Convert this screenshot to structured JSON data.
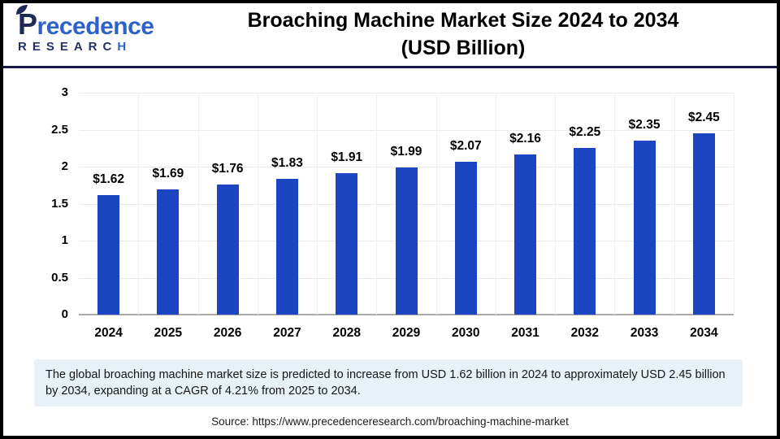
{
  "logo": {
    "brand": "Precedence",
    "subtitle": "RESEARCH"
  },
  "header": {
    "title_line1": "Broaching Machine Market Size 2024 to 2034",
    "title_line2": "(USD Billion)"
  },
  "chart_data": {
    "type": "bar",
    "title": "Broaching Machine Market Size 2024 to 2034 (USD Billion)",
    "categories": [
      "2024",
      "2025",
      "2026",
      "2027",
      "2028",
      "2029",
      "2030",
      "2031",
      "2032",
      "2033",
      "2034"
    ],
    "values": [
      1.62,
      1.69,
      1.76,
      1.83,
      1.91,
      1.99,
      2.07,
      2.16,
      2.25,
      2.35,
      2.45
    ],
    "data_labels": [
      "$1.62",
      "$1.69",
      "$1.76",
      "$1.83",
      "$1.91",
      "$1.99",
      "$2.07",
      "$2.16",
      "$2.25",
      "$2.35",
      "$2.45"
    ],
    "xlabel": "",
    "ylabel": "",
    "ylim": [
      0,
      3
    ],
    "yticks": [
      0,
      0.5,
      1,
      1.5,
      2,
      2.5,
      3
    ],
    "ytick_labels": [
      "0",
      "0.5",
      "1",
      "1.5",
      "2",
      "2.5",
      "3"
    ],
    "grid": true,
    "legend": false,
    "bar_color": "#1B45C1"
  },
  "note": {
    "text": "The global broaching machine market size is predicted to increase from USD 1.62 billion in 2024 to approximately USD 2.45 billion by 2034, expanding at a CAGR of 4.21% from 2025 to 2034."
  },
  "source": {
    "text": "Source: https://www.precedenceresearch.com/broaching-machine-market"
  },
  "colors": {
    "bar": "#1B45C1",
    "header_rule": "#14174A",
    "note_background": "#E8F0F8",
    "logo_navy": "#1D2A56",
    "logo_blue": "#2E62C9",
    "gridline": "#E9E9E9",
    "axis": "#ABABAB"
  }
}
